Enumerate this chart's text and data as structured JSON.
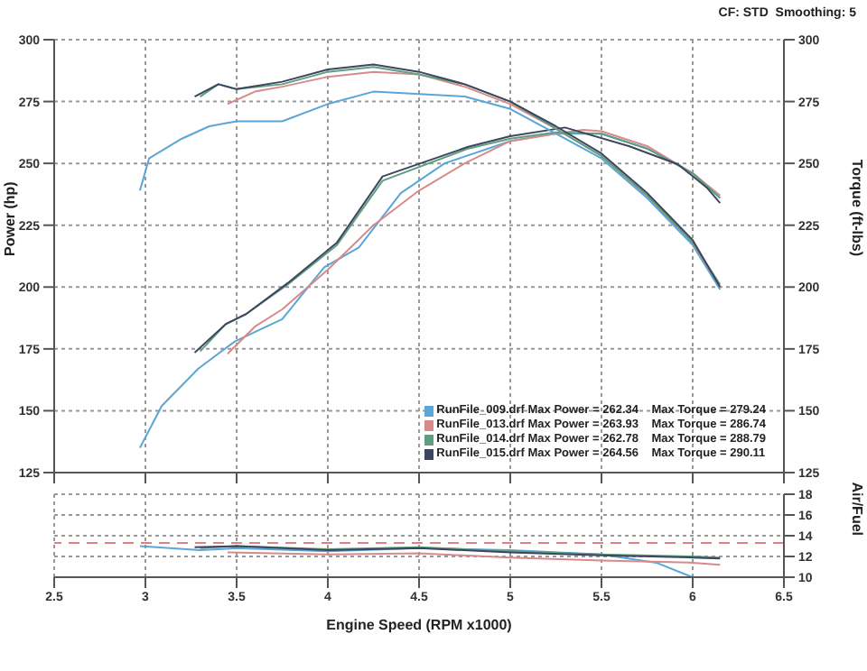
{
  "chart_data": [
    {
      "type": "line",
      "annotations": [
        "CF: STD  Smoothing: 5"
      ],
      "ylabel": "Power (hp)",
      "y2label": "Torque (ft-lbs)",
      "xlim": [
        2.5,
        6.5
      ],
      "xticks": [
        2.5,
        3,
        3.5,
        4,
        4.5,
        5,
        5.5,
        6,
        6.5
      ],
      "ylim": [
        125,
        300
      ],
      "yticks": [
        125,
        150,
        175,
        200,
        225,
        250,
        275,
        300
      ],
      "y2lim": [
        125,
        300
      ],
      "y2ticks": [
        125,
        150,
        175,
        200,
        225,
        250,
        275,
        300
      ],
      "tick_labels": "y",
      "grid": true,
      "legend": "bottom right",
      "marker": "none",
      "line_style": "solid",
      "series": [
        {
          "name": "RunFile_009.drf Max Power = 262.34    Max Torque = 279.24",
          "color": "#5aa6d6",
          "x": [
            2.97,
            3.09,
            3.29,
            3.49,
            3.75,
            3.98,
            4.17,
            4.4,
            4.64,
            5.0,
            5.24,
            5.5,
            5.75,
            6.0,
            6.15
          ],
          "values": [
            135,
            152,
            167,
            178,
            187,
            208,
            216,
            238,
            250,
            259,
            262,
            262,
            256,
            246,
            236
          ]
        },
        {
          "name": "RunFile_013.drf Max Power = 263.93    Max Torque = 286.74",
          "color": "#d88a8a",
          "x": [
            3.45,
            3.6,
            3.75,
            4.0,
            4.25,
            4.5,
            4.75,
            5.0,
            5.25,
            5.4,
            5.5,
            5.75,
            6.0,
            6.15
          ],
          "values": [
            173,
            184,
            191,
            207,
            225,
            239,
            250,
            259,
            262,
            263.5,
            263,
            257,
            246,
            237
          ]
        },
        {
          "name": "RunFile_014.drf Max Power = 262.78    Max Torque = 288.79",
          "color": "#5f9f7f",
          "x": [
            3.3,
            3.44,
            3.55,
            3.78,
            4.05,
            4.3,
            4.77,
            5.0,
            5.25,
            5.5,
            5.75,
            6.0,
            6.15
          ],
          "values": [
            174,
            185,
            189,
            201,
            217,
            243,
            256,
            260,
            262.5,
            262,
            256,
            246,
            236
          ]
        },
        {
          "name": "RunFile_015.drf Max Power = 264.56    Max Torque = 290.11",
          "color": "#3c4660",
          "x": [
            3.27,
            3.44,
            3.55,
            3.78,
            4.05,
            4.3,
            4.77,
            5.0,
            5.3,
            5.65,
            5.92,
            6.08,
            6.15
          ],
          "values": [
            173.5,
            185,
            189,
            201.6,
            218,
            244.7,
            256.7,
            261,
            264.5,
            257,
            249.6,
            240,
            234
          ]
        },
        {
          "axis": "y2",
          "color": "#5aa6d6",
          "x": [
            2.97,
            3.02,
            3.2,
            3.35,
            3.5,
            3.75,
            4.0,
            4.25,
            4.5,
            4.75,
            5.0,
            5.25,
            5.5,
            5.75,
            6.0,
            6.15
          ],
          "values": [
            239,
            252,
            260,
            265,
            267,
            267,
            274,
            279,
            278,
            277,
            272,
            262,
            252,
            236,
            217,
            199
          ]
        },
        {
          "axis": "y2",
          "color": "#d88a8a",
          "x": [
            3.45,
            3.6,
            3.75,
            4.0,
            4.25,
            4.5,
            4.75,
            5.0,
            5.25,
            5.5,
            5.75,
            6.0,
            6.15
          ],
          "values": [
            274,
            279,
            281,
            285,
            287,
            286,
            281,
            274,
            264,
            253,
            237,
            218,
            200
          ]
        },
        {
          "axis": "y2",
          "color": "#5f9f7f",
          "x": [
            3.3,
            3.4,
            3.5,
            3.75,
            4.0,
            4.25,
            4.5,
            4.75,
            5.0,
            5.25,
            5.5,
            5.75,
            6.0,
            6.15
          ],
          "values": [
            277,
            282,
            280,
            282,
            287,
            289,
            286,
            282,
            275,
            264,
            253,
            237,
            218,
            201
          ]
        },
        {
          "axis": "y2",
          "color": "#3c4660",
          "x": [
            3.27,
            3.4,
            3.5,
            3.75,
            4.0,
            4.25,
            4.5,
            4.75,
            5.0,
            5.25,
            5.5,
            5.75,
            6.0,
            6.15
          ],
          "values": [
            277,
            282,
            280,
            283,
            288,
            290,
            287,
            282,
            275,
            265,
            254,
            238,
            219,
            200
          ]
        }
      ]
    },
    {
      "type": "line",
      "xlabel": "Engine Speed (RPM x1000)",
      "y2label": "Air/Fuel",
      "xlim": [
        2.5,
        6.5
      ],
      "xticks": [
        2.5,
        3,
        3.5,
        4,
        4.5,
        5,
        5.5,
        6,
        6.5
      ],
      "y2lim": [
        10,
        18
      ],
      "y2ticks": [
        10,
        12,
        14,
        16,
        18
      ],
      "grid": true,
      "marker": "none",
      "line_style": "solid",
      "ref_lines": [
        {
          "axis": "y2",
          "value": 13.3,
          "color": "#e08080",
          "line_style": "dashed"
        }
      ],
      "series": [
        {
          "axis": "y2",
          "color": "#5aa6d6",
          "x": [
            2.97,
            3.3,
            3.5,
            4.0,
            4.5,
            5.0,
            5.5,
            5.8,
            6.0
          ],
          "values": [
            13,
            12.6,
            12.8,
            12.5,
            12.8,
            12.6,
            12.2,
            11.4,
            10
          ]
        },
        {
          "axis": "y2",
          "color": "#d88a8a",
          "x": [
            3.45,
            4.0,
            4.5,
            5.0,
            5.5,
            6.0,
            6.15
          ],
          "values": [
            12.4,
            12.2,
            12.3,
            11.9,
            11.6,
            11.4,
            11.2
          ]
        },
        {
          "axis": "y2",
          "color": "#5f9f7f",
          "x": [
            3.3,
            3.5,
            4.0,
            4.5,
            5.0,
            5.5,
            6.0,
            6.15
          ],
          "values": [
            12.8,
            13.0,
            12.7,
            12.9,
            12.5,
            12.2,
            12.0,
            11.9
          ]
        },
        {
          "axis": "y2",
          "color": "#3c4660",
          "x": [
            3.27,
            3.5,
            4.0,
            4.5,
            5.0,
            5.5,
            6.0,
            6.15
          ],
          "values": [
            12.9,
            13.0,
            12.6,
            12.8,
            12.4,
            12.1,
            11.9,
            11.8
          ]
        }
      ]
    }
  ]
}
